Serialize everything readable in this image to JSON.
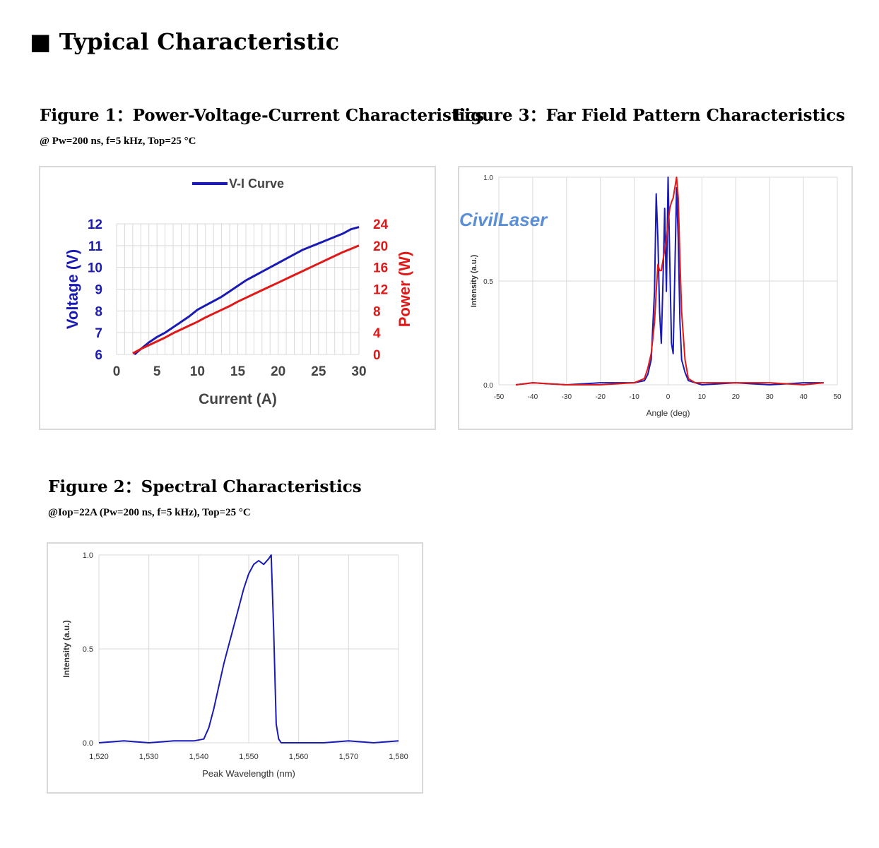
{
  "page": {
    "title": "■ Typical Characteristic"
  },
  "figures": {
    "fig1": {
      "title": "Figure 1：Power-Voltage-Current Characteristics",
      "subtitle": "@ Pw=200 ns, f=5 kHz, Top=25 °C"
    },
    "fig2": {
      "title": "Figure 2：Spectral Characteristics",
      "subtitle": "@Iop=22A (Pw=200 ns, f=5 kHz), Top=25 °C"
    },
    "fig3": {
      "title": "Figure 3：Far Field Pattern Characteristics"
    }
  },
  "colors": {
    "blue": "#1a1ab4",
    "red": "#e01818",
    "grid": "#d9d9d9",
    "logo": "#5a8fd6"
  },
  "watermark": "CivilLaser",
  "chart_data": [
    {
      "id": "vi",
      "type": "line",
      "legend": {
        "label": "V-I Curve",
        "position": "top"
      },
      "xlabel": "Current (A)",
      "ylabel": "Voltage (V)",
      "y2label": "Power (W)",
      "xlim": [
        0,
        30
      ],
      "ylim": [
        6,
        12
      ],
      "y2lim": [
        0,
        24
      ],
      "xticks": [
        "0",
        "5",
        "10",
        "15",
        "20",
        "25",
        "30"
      ],
      "yticks": [
        "6",
        "7",
        "8",
        "9",
        "10",
        "11",
        "12"
      ],
      "y2ticks": [
        "0",
        "4",
        "8",
        "12",
        "16",
        "20",
        "24"
      ],
      "series": [
        {
          "name": "V-I Curve",
          "axis": "left",
          "color": "#1a1ab4",
          "x": [
            2.2,
            3,
            4,
            5,
            6,
            7,
            8,
            9,
            10,
            11,
            12,
            13,
            14,
            15,
            16,
            17,
            18,
            19,
            20,
            21,
            22,
            23,
            24,
            25,
            26,
            27,
            28,
            29,
            30
          ],
          "y": [
            6.0,
            6.25,
            6.55,
            6.8,
            7.0,
            7.25,
            7.5,
            7.75,
            8.05,
            8.25,
            8.45,
            8.65,
            8.9,
            9.15,
            9.4,
            9.6,
            9.8,
            10.0,
            10.2,
            10.4,
            10.6,
            10.8,
            10.95,
            11.1,
            11.25,
            11.4,
            11.55,
            11.75,
            11.85
          ]
        },
        {
          "axis": "right",
          "color": "#e01818",
          "x": [
            2,
            3,
            4,
            5,
            6,
            7,
            8,
            9,
            10,
            11,
            12,
            13,
            14,
            15,
            16,
            17,
            18,
            19,
            20,
            21,
            22,
            23,
            24,
            25,
            26,
            27,
            28,
            29,
            30
          ],
          "y": [
            0.2,
            1.0,
            1.7,
            2.4,
            3.1,
            3.9,
            4.6,
            5.3,
            6.0,
            6.8,
            7.5,
            8.2,
            8.9,
            9.7,
            10.4,
            11.1,
            11.8,
            12.5,
            13.2,
            13.9,
            14.6,
            15.3,
            16.0,
            16.7,
            17.4,
            18.1,
            18.8,
            19.4,
            20.0
          ]
        }
      ]
    },
    {
      "id": "spectrum",
      "type": "line",
      "xlabel": "Peak Wavelength (nm)",
      "ylabel": "Intensity (a.u.)",
      "xlim": [
        1520,
        1580
      ],
      "ylim": [
        0,
        1
      ],
      "xticks": [
        "1,520",
        "1,530",
        "1,540",
        "1,550",
        "1,560",
        "1,570",
        "1,580"
      ],
      "yticks": [
        "0.0",
        "0.5",
        "1.0"
      ],
      "series": [
        {
          "color": "#1a1ab4",
          "x": [
            1520,
            1525,
            1530,
            1535,
            1539,
            1541,
            1542,
            1543,
            1544,
            1545,
            1546,
            1547,
            1548,
            1549,
            1550,
            1551,
            1552,
            1553,
            1554,
            1554.5,
            1555,
            1555.5,
            1556,
            1556.5,
            1560,
            1565,
            1570,
            1575,
            1580
          ],
          "y": [
            0.0,
            0.01,
            0.0,
            0.01,
            0.01,
            0.02,
            0.08,
            0.18,
            0.3,
            0.42,
            0.52,
            0.62,
            0.72,
            0.82,
            0.9,
            0.95,
            0.97,
            0.95,
            0.98,
            1.0,
            0.6,
            0.1,
            0.02,
            0.0,
            0.0,
            0.0,
            0.01,
            0.0,
            0.01
          ]
        }
      ]
    },
    {
      "id": "farfield",
      "type": "line",
      "xlabel": "Angle (deg)",
      "ylabel": "Intensity (a.u.)",
      "xlim": [
        -50,
        50
      ],
      "ylim": [
        0,
        1
      ],
      "xticks": [
        "-50",
        "-40",
        "-30",
        "-20",
        "-10",
        "0",
        "10",
        "20",
        "30",
        "40",
        "50"
      ],
      "yticks": [
        "0.0",
        "0.5",
        "1.0"
      ],
      "series": [
        {
          "color": "#1a1ab4",
          "x": [
            -45,
            -40,
            -30,
            -20,
            -10,
            -7,
            -6,
            -5,
            -4,
            -3.5,
            -3,
            -2.5,
            -2,
            -1.5,
            -1,
            -0.5,
            0,
            0.5,
            1,
            1.5,
            2,
            2.5,
            3,
            3.5,
            4,
            5,
            6,
            8,
            10,
            20,
            30,
            40,
            46
          ],
          "y": [
            0.0,
            0.01,
            0.0,
            0.01,
            0.01,
            0.02,
            0.05,
            0.12,
            0.45,
            0.92,
            0.7,
            0.35,
            0.2,
            0.5,
            0.85,
            0.45,
            1.0,
            0.6,
            0.2,
            0.15,
            0.55,
            0.95,
            0.7,
            0.3,
            0.12,
            0.06,
            0.02,
            0.01,
            0.0,
            0.01,
            0.0,
            0.01,
            0.01
          ]
        },
        {
          "color": "#e01818",
          "x": [
            -45,
            -40,
            -30,
            -20,
            -10,
            -7,
            -6,
            -5,
            -4,
            -3.5,
            -3,
            -2.5,
            -2,
            -1.5,
            -1,
            -0.5,
            0,
            0.5,
            1,
            1.5,
            2,
            2.5,
            3,
            3.5,
            4,
            5,
            6,
            8,
            10,
            20,
            30,
            40,
            46
          ],
          "y": [
            0.0,
            0.01,
            0.0,
            0.0,
            0.01,
            0.03,
            0.08,
            0.15,
            0.3,
            0.45,
            0.58,
            0.55,
            0.55,
            0.6,
            0.65,
            0.7,
            0.78,
            0.85,
            0.88,
            0.9,
            0.95,
            1.0,
            0.9,
            0.6,
            0.35,
            0.12,
            0.03,
            0.01,
            0.01,
            0.01,
            0.01,
            0.0,
            0.01
          ]
        }
      ]
    }
  ]
}
